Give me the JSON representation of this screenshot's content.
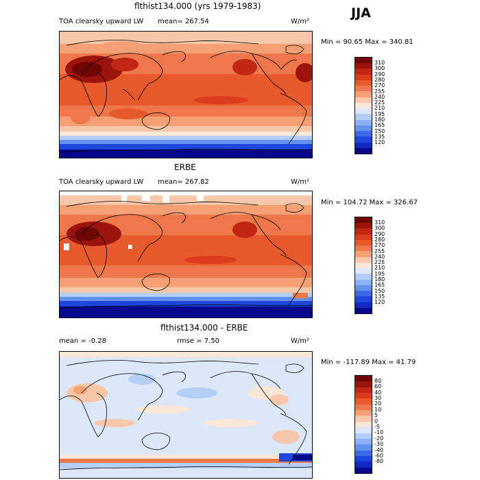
{
  "season": "JJA",
  "panels": [
    {
      "title": "flthist134.000 (yrs 1979-1983)",
      "left_label": "TOA clearsky upward LW",
      "mean_label": "mean= 267.54",
      "units": "W/m²",
      "minmax": "Min =  90.65 Max = 340.81",
      "colorbar": {
        "colors": [
          "#08088c",
          "#1228c0",
          "#1e46dc",
          "#3c6ae6",
          "#6490ee",
          "#8cb0f4",
          "#b4cef8",
          "#dce8fa",
          "#fbe6d8",
          "#f9c8aa",
          "#f4a074",
          "#ee784c",
          "#e85a2e",
          "#dc3c1e",
          "#c02814",
          "#9a140c",
          "#6e0604"
        ],
        "labels": [
          "310",
          "300",
          "290",
          "280",
          "270",
          "255",
          "240",
          "225",
          "210",
          "195",
          "180",
          "165",
          "150",
          "135",
          "120"
        ]
      }
    },
    {
      "title": "ERBE",
      "left_label": "TOA clearsky upward LW",
      "mean_label": "mean= 267.82",
      "units": "W/m²",
      "minmax": "Min = 104.72 Max = 326.67",
      "colorbar": {
        "colors": [
          "#08088c",
          "#1228c0",
          "#1e46dc",
          "#3c6ae6",
          "#6490ee",
          "#8cb0f4",
          "#b4cef8",
          "#dce8fa",
          "#fbe6d8",
          "#f9c8aa",
          "#f4a074",
          "#ee784c",
          "#e85a2e",
          "#dc3c1e",
          "#c02814",
          "#9a140c",
          "#6e0604"
        ],
        "labels": [
          "310",
          "300",
          "290",
          "280",
          "270",
          "255",
          "240",
          "225",
          "210",
          "195",
          "180",
          "165",
          "150",
          "135",
          "120"
        ]
      }
    },
    {
      "title": "flthist134.000 - ERBE",
      "left_label": "mean =  -0.28",
      "mean_label": "rmse =   7.50",
      "units": "W/m²",
      "minmax": "Min = -117.89 Max =  41.79",
      "colorbar": {
        "colors": [
          "#08088c",
          "#1228c0",
          "#1e46dc",
          "#3c6ae6",
          "#6490ee",
          "#8cb0f4",
          "#b4cef8",
          "#dce8fa",
          "#fbe6d8",
          "#f9c8aa",
          "#f4a074",
          "#ee784c",
          "#e85a2e",
          "#dc3c1e",
          "#c02814",
          "#9a140c",
          "#6e0604"
        ],
        "labels": [
          "80",
          "60",
          "40",
          "30",
          "20",
          "10",
          "5",
          "0",
          "-5",
          "-10",
          "-20",
          "-30",
          "-40",
          "-60",
          "-80"
        ]
      }
    }
  ]
}
